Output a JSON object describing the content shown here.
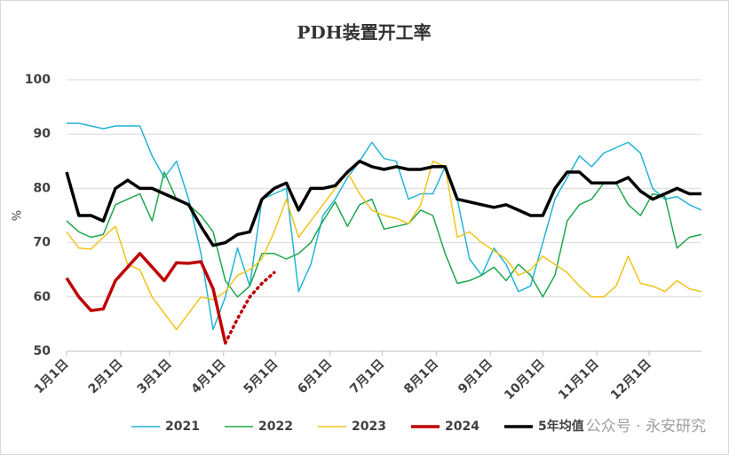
{
  "chart_data": {
    "type": "line",
    "title": "PDH装置开工率",
    "y_label": "%",
    "watermark": "公众号 · 永安研究",
    "ylim": [
      50,
      100
    ],
    "yticks": [
      50,
      60,
      70,
      80,
      90,
      100
    ],
    "xlim": [
      1,
      365
    ],
    "xticks": [
      {
        "value": 1,
        "label": "1月1日"
      },
      {
        "value": 32,
        "label": "2月1日"
      },
      {
        "value": 60,
        "label": "3月1日"
      },
      {
        "value": 91,
        "label": "4月1日"
      },
      {
        "value": 121,
        "label": "5月1日"
      },
      {
        "value": 152,
        "label": "6月1日"
      },
      {
        "value": 182,
        "label": "7月1日"
      },
      {
        "value": 213,
        "label": "8月1日"
      },
      {
        "value": 244,
        "label": "9月1日"
      },
      {
        "value": 274,
        "label": "10月1日"
      },
      {
        "value": 305,
        "label": "11月1日"
      },
      {
        "value": 335,
        "label": "12月1日"
      }
    ],
    "grid": true,
    "legend": "bottom",
    "x": [
      1,
      8,
      15,
      22,
      29,
      36,
      43,
      50,
      57,
      64,
      71,
      78,
      85,
      92,
      99,
      106,
      113,
      120,
      127,
      134,
      141,
      148,
      155,
      162,
      169,
      176,
      183,
      190,
      197,
      204,
      211,
      218,
      225,
      232,
      239,
      246,
      253,
      260,
      267,
      274,
      281,
      288,
      295,
      302,
      309,
      316,
      323,
      330,
      337,
      344,
      351,
      358,
      365
    ],
    "series": [
      {
        "name": "2021",
        "color": "#22b4d6",
        "width": 1.5,
        "values": [
          92,
          92,
          91.5,
          91,
          91.5,
          91.5,
          91.5,
          86,
          82,
          85,
          78,
          68,
          54,
          60,
          69,
          62,
          78,
          79,
          80,
          61,
          66,
          75,
          78,
          82,
          85,
          88.5,
          85.5,
          85,
          78,
          79,
          79,
          84,
          78,
          67,
          64,
          69,
          66,
          61,
          62,
          70,
          78,
          82,
          86,
          84,
          86.5,
          87.5,
          88.5,
          86.5,
          80,
          78,
          78.5,
          77,
          76
        ]
      },
      {
        "name": "2022",
        "color": "#1ea64c",
        "width": 1.5,
        "values": [
          74,
          72,
          71,
          71.5,
          77,
          78,
          79,
          74,
          83,
          78,
          77,
          75,
          72,
          63,
          60,
          62,
          68,
          68,
          67,
          68,
          70,
          74,
          77.5,
          73,
          77,
          78,
          72.5,
          73,
          73.5,
          76,
          75,
          68,
          62.5,
          63,
          64,
          65.5,
          63,
          66,
          64,
          60,
          64,
          74,
          77,
          78,
          81,
          81,
          77,
          75,
          79,
          78.5,
          69,
          71,
          71.5
        ]
      },
      {
        "name": "2023",
        "color": "#f2c418",
        "width": 1.5,
        "values": [
          72,
          69,
          68.8,
          71,
          73,
          66,
          65,
          60,
          57,
          54,
          57,
          60,
          59.5,
          61,
          64,
          65,
          67,
          72,
          78,
          71,
          74,
          77,
          80,
          83,
          79,
          76,
          75,
          74.5,
          73.5,
          77,
          85,
          84,
          71,
          72,
          70,
          68.5,
          67,
          64,
          65,
          67.5,
          66,
          64.5,
          62,
          60,
          60,
          62,
          67.5,
          62.5,
          62,
          61,
          63,
          61.5,
          61
        ]
      },
      {
        "name": "2024",
        "color": "#c00000",
        "width": 3.5,
        "values": [
          63.5,
          60,
          57.5,
          57.8,
          63,
          65.5,
          68,
          65.5,
          63,
          66.3,
          66.2,
          66.5,
          61.5,
          51.5,
          null,
          null,
          null,
          null,
          null,
          null,
          null,
          null,
          null,
          null,
          null,
          null,
          null,
          null,
          null,
          null,
          null,
          null,
          null,
          null,
          null,
          null,
          null,
          null,
          null,
          null,
          null,
          null,
          null,
          null,
          null,
          null,
          null,
          null,
          null,
          null,
          null,
          null,
          null
        ],
        "forecast_values": [
          null,
          null,
          null,
          null,
          null,
          null,
          null,
          null,
          null,
          null,
          null,
          null,
          null,
          51.5,
          56,
          60,
          62.5,
          64.5,
          null,
          null,
          null,
          null,
          null,
          null,
          null,
          null,
          null,
          null,
          null,
          null,
          null,
          null,
          null,
          null,
          null,
          null,
          null,
          null,
          null,
          null,
          null,
          null,
          null,
          null,
          null,
          null,
          null,
          null,
          null,
          null,
          null,
          null,
          null
        ]
      },
      {
        "name": "5年均值",
        "color": "#000000",
        "width": 3.5,
        "values": [
          83,
          75,
          75,
          74,
          80,
          81.5,
          80,
          80,
          79,
          78,
          77,
          73,
          69.5,
          70,
          71.5,
          72,
          78,
          80,
          81,
          76,
          80,
          80,
          80.5,
          83,
          85,
          84,
          83.5,
          84,
          83.5,
          83.5,
          84,
          84,
          78,
          77.5,
          77,
          76.5,
          77,
          76,
          75,
          75,
          80,
          83,
          83,
          81,
          81,
          81,
          82,
          79.5,
          78,
          79,
          80,
          79,
          79
        ]
      }
    ]
  }
}
